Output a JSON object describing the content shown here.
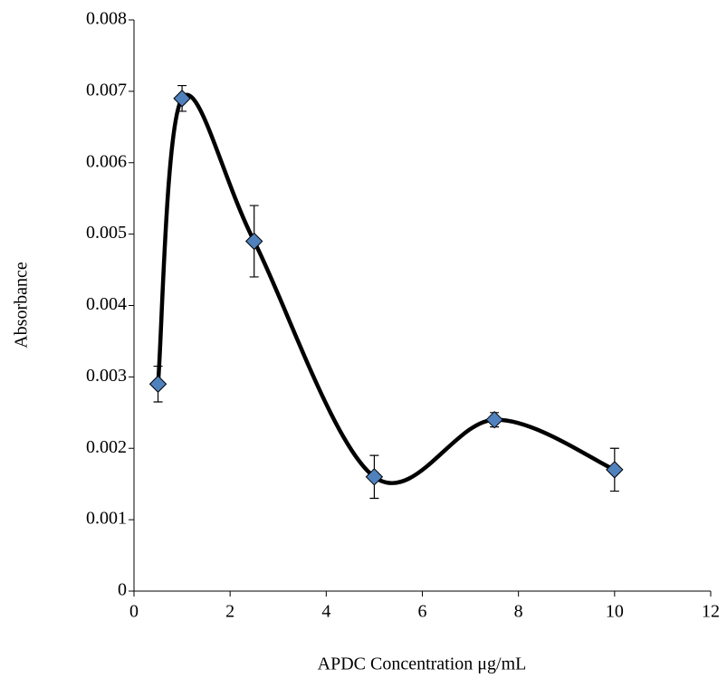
{
  "chart_data": {
    "type": "scatter",
    "x_label": "APDC Concentration μg/mL",
    "y_label": "Absorbance",
    "x": [
      0.5,
      1,
      2.5,
      5,
      7.5,
      10
    ],
    "values": [
      0.0029,
      0.0069,
      0.0049,
      0.0016,
      0.0024,
      0.0017
    ],
    "errors": [
      0.00025,
      0.00018,
      0.0005,
      0.0003,
      0.0001,
      0.0003
    ],
    "color": "#4f81bd",
    "line_color": "#000000",
    "smooth": true,
    "xlim": [
      0,
      12
    ],
    "xticks": [
      0,
      2,
      4,
      6,
      8,
      10,
      12
    ],
    "ylim": [
      0,
      0.008
    ],
    "yticks": [
      0,
      0.001,
      0.002,
      0.003,
      0.004,
      0.005,
      0.006,
      0.007,
      0.008
    ]
  }
}
